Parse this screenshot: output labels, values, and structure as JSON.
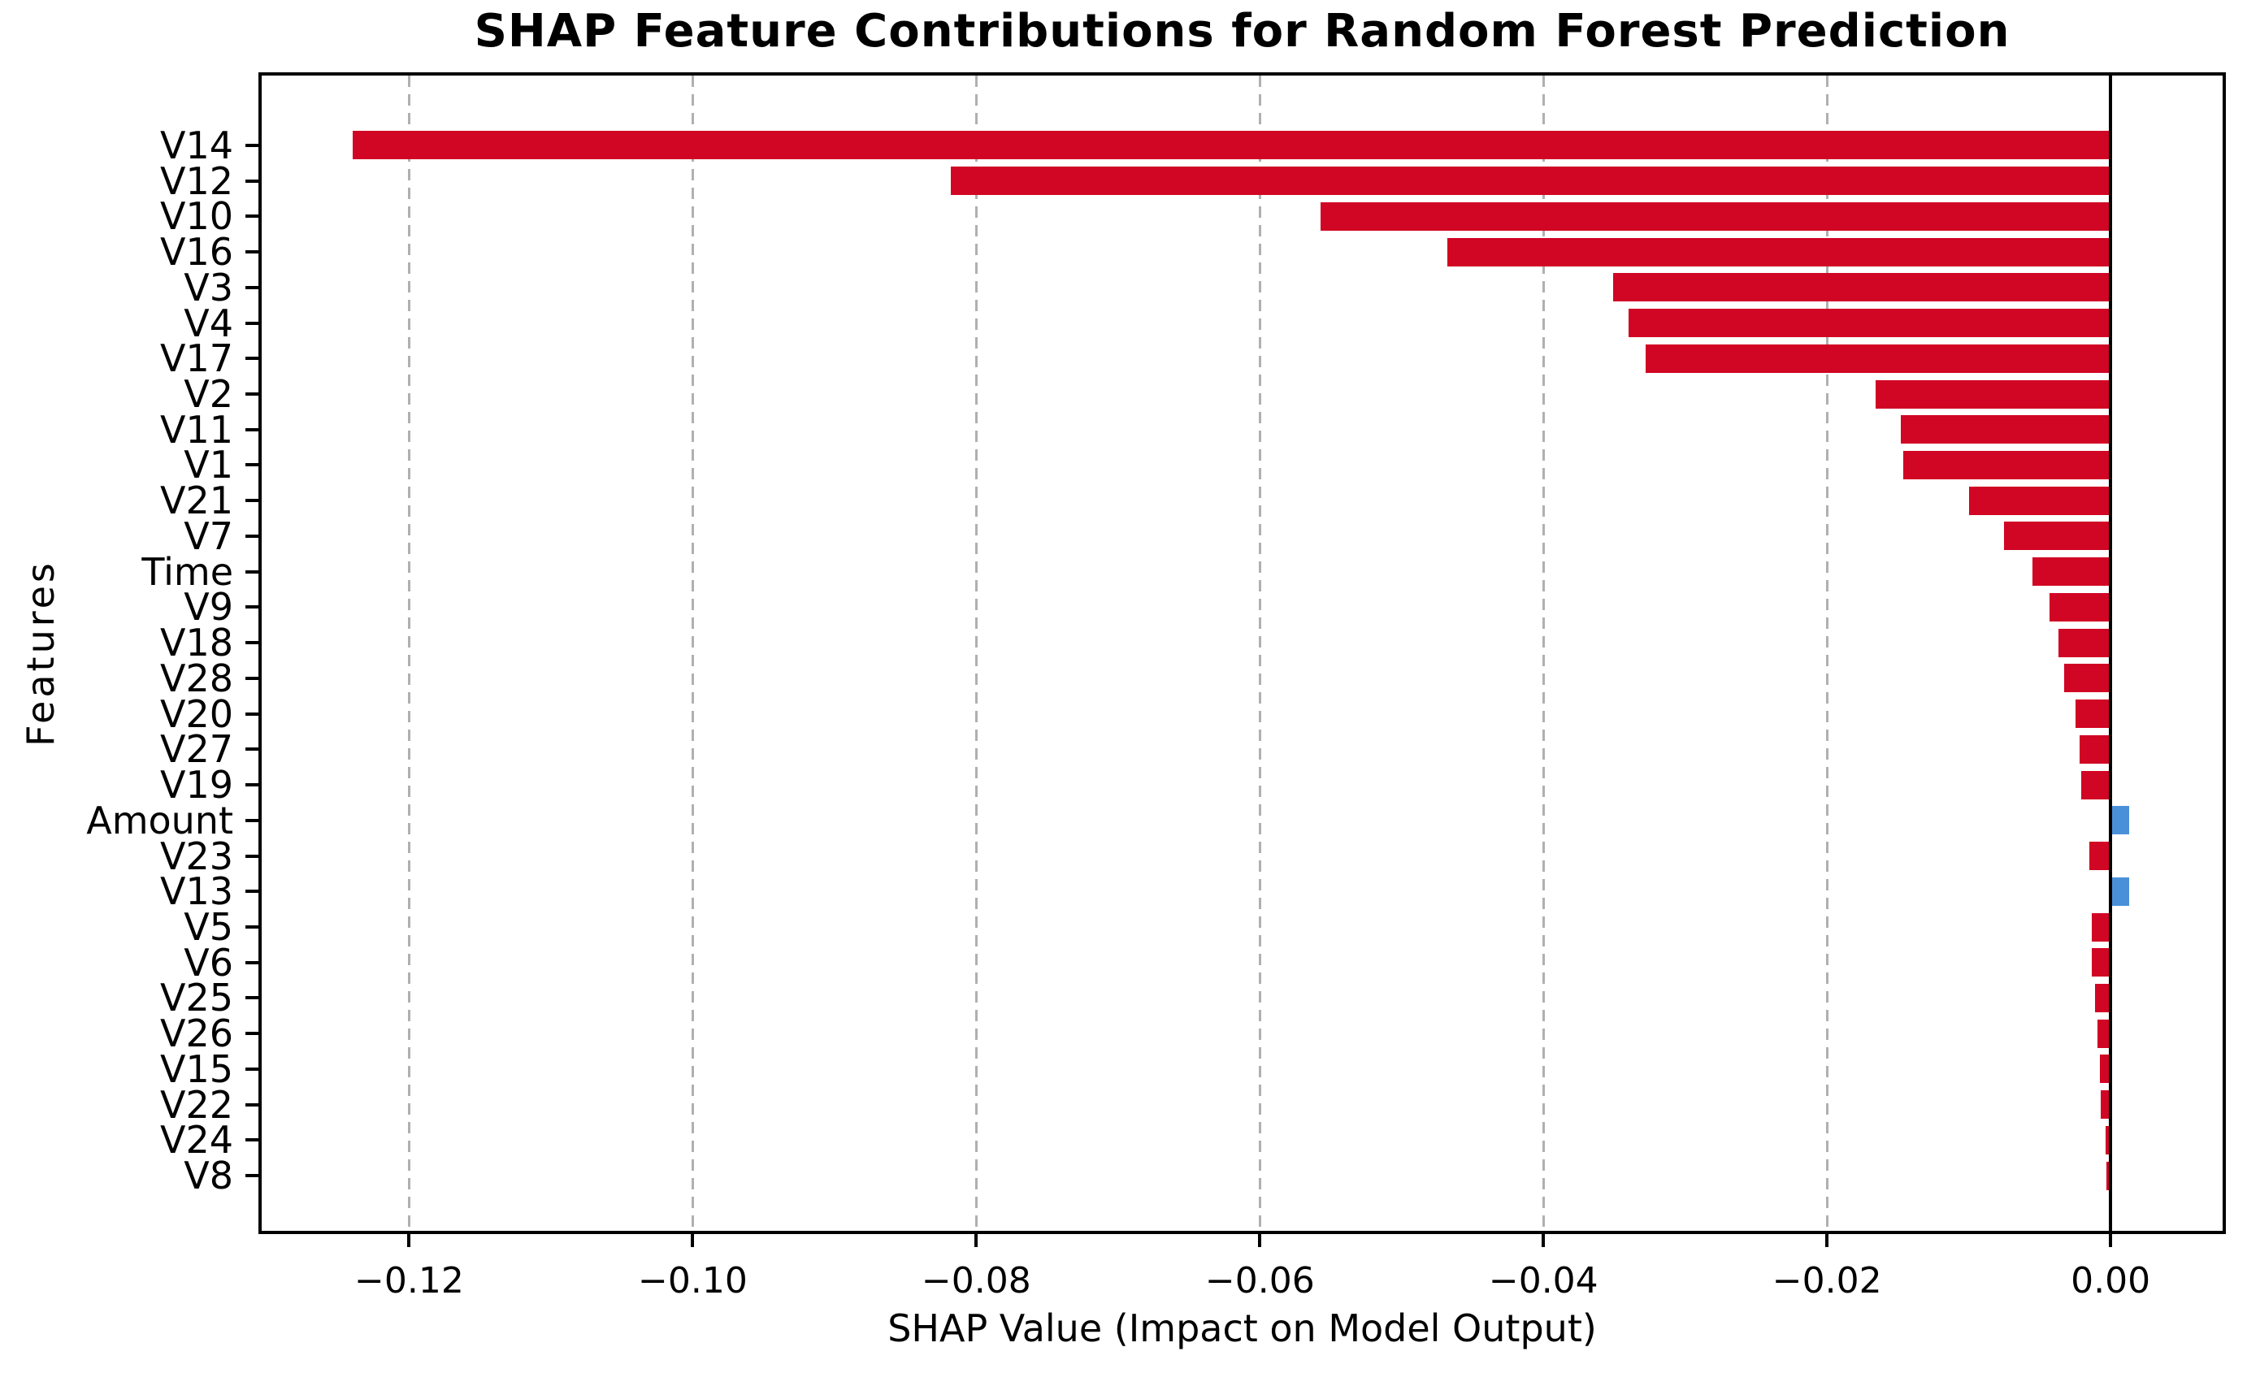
{
  "chart_data": {
    "type": "bar",
    "orientation": "horizontal",
    "title": "SHAP Feature Contributions for Random Forest Prediction",
    "xlabel": "SHAP Value (Impact on Model Output)",
    "ylabel": "Features",
    "categories": [
      "V14",
      "V12",
      "V10",
      "V16",
      "V3",
      "V4",
      "V17",
      "V2",
      "V11",
      "V1",
      "V21",
      "V7",
      "Time",
      "V9",
      "V18",
      "V28",
      "V20",
      "V27",
      "V19",
      "Amount",
      "V23",
      "V13",
      "V5",
      "V6",
      "V25",
      "V26",
      "V15",
      "V22",
      "V24",
      "V8"
    ],
    "values": [
      -0.124,
      -0.0818,
      -0.0557,
      -0.0468,
      -0.0351,
      -0.034,
      -0.0328,
      -0.0166,
      -0.0148,
      -0.0146,
      -0.01,
      -0.0075,
      -0.0055,
      -0.0043,
      -0.0037,
      -0.0033,
      -0.0025,
      -0.0022,
      -0.0021,
      0.0013,
      -0.0015,
      0.0013,
      -0.0013,
      -0.0013,
      -0.0011,
      -0.0009,
      -0.00075,
      -0.0007,
      -0.00033,
      -0.0003
    ],
    "xlim": [
      -0.1304,
      0.0079
    ],
    "x_ticks": [
      -0.12,
      -0.1,
      -0.08,
      -0.06,
      -0.04,
      -0.02,
      0.0
    ],
    "x_tick_labels": [
      "−0.12",
      "−0.10",
      "−0.08",
      "−0.06",
      "−0.04",
      "−0.02",
      "0.00"
    ],
    "grid": {
      "axis": "x",
      "style": "dashed",
      "color": "#b0b0b0"
    },
    "zero_line": {
      "value": 0.0,
      "color": "#000000",
      "style": "solid"
    },
    "colors": {
      "negative_bar": "#d10524",
      "positive_bar": "#4a90d9"
    },
    "legend_position": "none"
  }
}
